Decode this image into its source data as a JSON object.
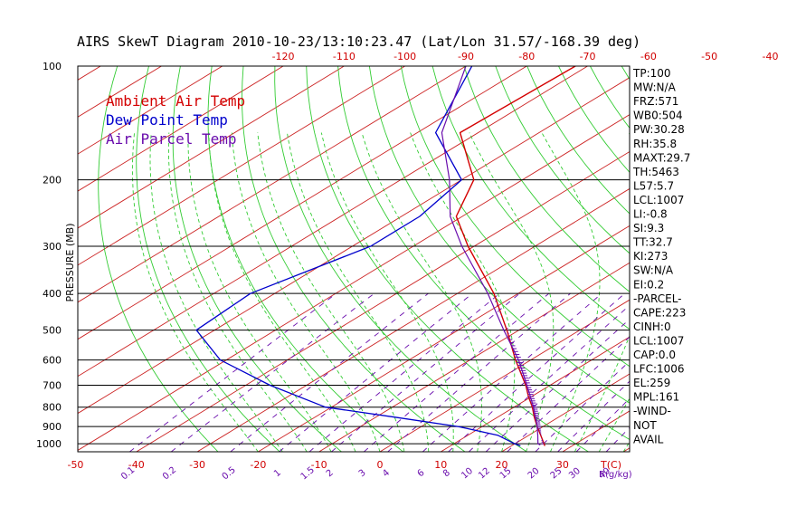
{
  "title": "AIRS SkewT Diagram 2010-10-23/13:10:23.47 (Lat/Lon 31.57/-168.39 deg)",
  "colors": {
    "temp": "#d40000",
    "dewpoint": "#0000cc",
    "parcel": "#6a0dad",
    "dry_adiabat": "#33cc33",
    "moist_adiabat": "#33cc33",
    "mixing_ratio": "#6a0dad",
    "isotherm": "#cc2222",
    "isobar": "#000000"
  },
  "legend": [
    {
      "label": "Ambient Air Temp",
      "color": "#d40000"
    },
    {
      "label": "Dew Point Temp",
      "color": "#0000cc"
    },
    {
      "label": "Air Parcel Temp",
      "color": "#6a0dad"
    }
  ],
  "stats": [
    "TP:100",
    "MW:N/A",
    "FRZ:571",
    "WB0:504",
    "PW:30.28",
    "RH:35.8",
    "MAXT:29.7",
    "TH:5463",
    "L57:5.7",
    "LCL:1007",
    "LI:-0.8",
    "SI:9.3",
    "TT:32.7",
    "KI:273",
    "SW:N/A",
    "EI:0.2",
    "-PARCEL-",
    "CAPE:223",
    "CINH:0",
    "LCL:1007",
    "CAP:0.0",
    "LFC:1006",
    "EL:259",
    "MPL:161",
    "-WIND-",
    "NOT",
    "AVAIL"
  ],
  "chart_data": {
    "type": "line",
    "title": "AIRS SkewT Diagram 2010-10-23/13:10:23.47 (Lat/Lon 31.57/-168.39 deg)",
    "ylabel": "PRESSURE (MB)",
    "xlabel": "T(C)",
    "mixing_label": "R(g/kg)",
    "pressure_ticks": [
      100,
      200,
      300,
      400,
      500,
      600,
      700,
      800,
      900,
      1000
    ],
    "top_temp_ticks": [
      -120,
      -110,
      -100,
      -90,
      -80,
      -70,
      -60,
      -50,
      -40
    ],
    "bottom_temp_ticks": [
      -50,
      -40,
      -30,
      -20,
      -10,
      0,
      10,
      20,
      30
    ],
    "mixing_ratio_ticks": [
      "0.1",
      "0.2",
      "0.5",
      "1",
      "1.5",
      "2",
      "3",
      "4",
      "6",
      "8",
      "10",
      "12",
      "15",
      "20",
      "25",
      "30",
      "40"
    ],
    "mixing_ratio_values": [
      0.1,
      0.2,
      0.5,
      1,
      1.5,
      2,
      3,
      4,
      6,
      8,
      10,
      12,
      15,
      20,
      25,
      30,
      40
    ],
    "ylim": [
      100,
      1050
    ],
    "series": [
      {
        "name": "Ambient Air Temp",
        "pressure": [
          1013,
          1000,
          950,
          900,
          850,
          800,
          750,
          700,
          600,
          500,
          400,
          300,
          250,
          200,
          150,
          100
        ],
        "temp": [
          25.5,
          24.8,
          22.0,
          19.0,
          16.0,
          13.0,
          9.5,
          6.0,
          -2.5,
          -12.0,
          -24.0,
          -41.0,
          -51.0,
          -58.0,
          -73.0,
          -72.0
        ]
      },
      {
        "name": "Dew Point Temp",
        "pressure": [
          1013,
          1000,
          950,
          900,
          850,
          800,
          700,
          600,
          500,
          400,
          300,
          250,
          200,
          150,
          100
        ],
        "dewpoint": [
          21.5,
          20.0,
          15.0,
          6.0,
          -7.0,
          -21.0,
          -36.0,
          -51.0,
          -63.0,
          -64.0,
          -57.0,
          -57.0,
          -60.0,
          -77.0,
          -89.0
        ]
      },
      {
        "name": "Air Parcel Temp",
        "pressure": [
          1007,
          1000,
          950,
          900,
          850,
          800,
          700,
          600,
          500,
          400,
          300,
          250,
          200,
          150,
          100
        ],
        "temp": [
          24.5,
          23.8,
          21.5,
          19.0,
          16.2,
          13.2,
          6.2,
          -2.0,
          -12.5,
          -25.0,
          -42.0,
          -52.0,
          -62.0,
          -76.0,
          -90.0
        ]
      }
    ]
  }
}
